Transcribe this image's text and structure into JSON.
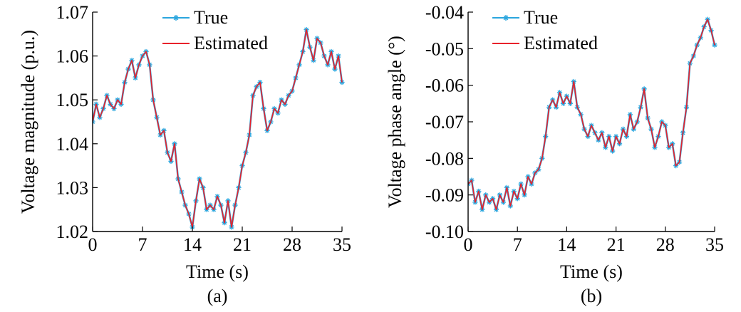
{
  "chart_data": [
    {
      "type": "line",
      "panel_label": "(a)",
      "xlabel": "Time (s)",
      "ylabel": "Voltage magnitude (p.u.)",
      "xlim": [
        0,
        35
      ],
      "ylim": [
        1.02,
        1.07
      ],
      "xticks": [
        0,
        7,
        14,
        21,
        28,
        35
      ],
      "xtick_labels": [
        "0",
        "7",
        "14",
        "21",
        "28",
        "35"
      ],
      "yticks": [
        1.02,
        1.03,
        1.04,
        1.05,
        1.06,
        1.07
      ],
      "ytick_labels": [
        "1.02",
        "1.03",
        "1.04",
        "1.05",
        "1.06",
        "1.07"
      ],
      "legend_position": "top-center",
      "series": [
        {
          "name": "True",
          "color": "#2ba6de",
          "marker": "star",
          "x": [
            0,
            0.5,
            1,
            1.5,
            2,
            2.5,
            3,
            3.5,
            4,
            4.5,
            5,
            5.5,
            6,
            6.5,
            7,
            7.5,
            8,
            8.5,
            9,
            9.5,
            10,
            10.5,
            11,
            11.5,
            12,
            12.5,
            13,
            13.5,
            14,
            14.5,
            15,
            15.5,
            16,
            16.5,
            17,
            17.5,
            18,
            18.5,
            19,
            19.5,
            20,
            20.5,
            21,
            21.5,
            22,
            22.5,
            23,
            23.5,
            24,
            24.5,
            25,
            25.5,
            26,
            26.5,
            27,
            27.5,
            28,
            28.5,
            29,
            29.5,
            30,
            30.5,
            31,
            31.5,
            32,
            32.5,
            33,
            33.5,
            34,
            34.5,
            35
          ],
          "values": [
            1.045,
            1.049,
            1.046,
            1.048,
            1.051,
            1.049,
            1.048,
            1.05,
            1.049,
            1.054,
            1.057,
            1.059,
            1.055,
            1.058,
            1.06,
            1.061,
            1.058,
            1.05,
            1.046,
            1.042,
            1.043,
            1.038,
            1.036,
            1.04,
            1.032,
            1.029,
            1.026,
            1.024,
            1.021,
            1.027,
            1.032,
            1.03,
            1.025,
            1.026,
            1.025,
            1.028,
            1.026,
            1.022,
            1.027,
            1.021,
            1.026,
            1.03,
            1.035,
            1.038,
            1.042,
            1.051,
            1.053,
            1.054,
            1.048,
            1.043,
            1.045,
            1.048,
            1.047,
            1.05,
            1.049,
            1.051,
            1.052,
            1.055,
            1.058,
            1.061,
            1.066,
            1.062,
            1.059,
            1.064,
            1.063,
            1.06,
            1.058,
            1.061,
            1.057,
            1.06,
            1.054
          ]
        },
        {
          "name": "Estimated",
          "color": "#e8222b",
          "marker": "none",
          "x": [
            0,
            0.5,
            1,
            1.5,
            2,
            2.5,
            3,
            3.5,
            4,
            4.5,
            5,
            5.5,
            6,
            6.5,
            7,
            7.5,
            8,
            8.5,
            9,
            9.5,
            10,
            10.5,
            11,
            11.5,
            12,
            12.5,
            13,
            13.5,
            14,
            14.5,
            15,
            15.5,
            16,
            16.5,
            17,
            17.5,
            18,
            18.5,
            19,
            19.5,
            20,
            20.5,
            21,
            21.5,
            22,
            22.5,
            23,
            23.5,
            24,
            24.5,
            25,
            25.5,
            26,
            26.5,
            27,
            27.5,
            28,
            28.5,
            29,
            29.5,
            30,
            30.5,
            31,
            31.5,
            32,
            32.5,
            33,
            33.5,
            34,
            34.5,
            35
          ],
          "values": [
            1.045,
            1.049,
            1.046,
            1.048,
            1.051,
            1.049,
            1.048,
            1.05,
            1.049,
            1.054,
            1.057,
            1.059,
            1.055,
            1.058,
            1.06,
            1.061,
            1.058,
            1.05,
            1.046,
            1.042,
            1.043,
            1.038,
            1.036,
            1.04,
            1.032,
            1.029,
            1.026,
            1.024,
            1.021,
            1.027,
            1.032,
            1.03,
            1.025,
            1.026,
            1.025,
            1.028,
            1.026,
            1.022,
            1.027,
            1.021,
            1.026,
            1.03,
            1.035,
            1.038,
            1.042,
            1.051,
            1.053,
            1.054,
            1.048,
            1.043,
            1.045,
            1.048,
            1.047,
            1.05,
            1.049,
            1.051,
            1.052,
            1.055,
            1.058,
            1.061,
            1.066,
            1.062,
            1.059,
            1.064,
            1.063,
            1.06,
            1.058,
            1.061,
            1.057,
            1.06,
            1.054
          ]
        }
      ]
    },
    {
      "type": "line",
      "panel_label": "(b)",
      "xlabel": "Time (s)",
      "ylabel": "Voltage phase angle (°)",
      "xlim": [
        0,
        35
      ],
      "ylim": [
        -0.1,
        -0.04
      ],
      "xticks": [
        0,
        7,
        14,
        21,
        28,
        35
      ],
      "xtick_labels": [
        "0",
        "7",
        "14",
        "21",
        "28",
        "35"
      ],
      "yticks": [
        -0.1,
        -0.09,
        -0.08,
        -0.07,
        -0.06,
        -0.05,
        -0.04
      ],
      "ytick_labels": [
        "-0.10",
        "-0.09",
        "-0.08",
        "-0.07",
        "-0.06",
        "-0.05",
        "-0.04"
      ],
      "legend_position": "top-center",
      "series": [
        {
          "name": "True",
          "color": "#2ba6de",
          "marker": "star",
          "x": [
            0,
            0.5,
            1,
            1.5,
            2,
            2.5,
            3,
            3.5,
            4,
            4.5,
            5,
            5.5,
            6,
            6.5,
            7,
            7.5,
            8,
            8.5,
            9,
            9.5,
            10,
            10.5,
            11,
            11.5,
            12,
            12.5,
            13,
            13.5,
            14,
            14.5,
            15,
            15.5,
            16,
            16.5,
            17,
            17.5,
            18,
            18.5,
            19,
            19.5,
            20,
            20.5,
            21,
            21.5,
            22,
            22.5,
            23,
            23.5,
            24,
            24.5,
            25,
            25.5,
            26,
            26.5,
            27,
            27.5,
            28,
            28.5,
            29,
            29.5,
            30,
            30.5,
            31,
            31.5,
            32,
            32.5,
            33,
            33.5,
            34,
            34.5,
            35
          ],
          "values": [
            -0.087,
            -0.086,
            -0.092,
            -0.089,
            -0.094,
            -0.09,
            -0.092,
            -0.091,
            -0.094,
            -0.09,
            -0.092,
            -0.088,
            -0.093,
            -0.089,
            -0.091,
            -0.087,
            -0.09,
            -0.085,
            -0.087,
            -0.084,
            -0.083,
            -0.08,
            -0.074,
            -0.066,
            -0.064,
            -0.066,
            -0.062,
            -0.065,
            -0.063,
            -0.065,
            -0.059,
            -0.066,
            -0.068,
            -0.072,
            -0.074,
            -0.071,
            -0.073,
            -0.075,
            -0.073,
            -0.077,
            -0.074,
            -0.078,
            -0.074,
            -0.076,
            -0.072,
            -0.074,
            -0.068,
            -0.072,
            -0.07,
            -0.066,
            -0.061,
            -0.069,
            -0.072,
            -0.077,
            -0.074,
            -0.07,
            -0.071,
            -0.077,
            -0.076,
            -0.082,
            -0.081,
            -0.073,
            -0.066,
            -0.054,
            -0.052,
            -0.049,
            -0.047,
            -0.044,
            -0.042,
            -0.045,
            -0.049
          ]
        },
        {
          "name": "Estimated",
          "color": "#e8222b",
          "marker": "none",
          "x": [
            0,
            0.5,
            1,
            1.5,
            2,
            2.5,
            3,
            3.5,
            4,
            4.5,
            5,
            5.5,
            6,
            6.5,
            7,
            7.5,
            8,
            8.5,
            9,
            9.5,
            10,
            10.5,
            11,
            11.5,
            12,
            12.5,
            13,
            13.5,
            14,
            14.5,
            15,
            15.5,
            16,
            16.5,
            17,
            17.5,
            18,
            18.5,
            19,
            19.5,
            20,
            20.5,
            21,
            21.5,
            22,
            22.5,
            23,
            23.5,
            24,
            24.5,
            25,
            25.5,
            26,
            26.5,
            27,
            27.5,
            28,
            28.5,
            29,
            29.5,
            30,
            30.5,
            31,
            31.5,
            32,
            32.5,
            33,
            33.5,
            34,
            34.5,
            35
          ],
          "values": [
            -0.087,
            -0.086,
            -0.092,
            -0.089,
            -0.094,
            -0.09,
            -0.092,
            -0.091,
            -0.094,
            -0.09,
            -0.092,
            -0.088,
            -0.093,
            -0.089,
            -0.091,
            -0.087,
            -0.09,
            -0.085,
            -0.087,
            -0.084,
            -0.083,
            -0.08,
            -0.074,
            -0.066,
            -0.064,
            -0.066,
            -0.062,
            -0.065,
            -0.063,
            -0.065,
            -0.059,
            -0.066,
            -0.068,
            -0.072,
            -0.074,
            -0.071,
            -0.073,
            -0.075,
            -0.073,
            -0.077,
            -0.074,
            -0.078,
            -0.074,
            -0.076,
            -0.072,
            -0.074,
            -0.068,
            -0.072,
            -0.07,
            -0.066,
            -0.061,
            -0.069,
            -0.072,
            -0.077,
            -0.074,
            -0.07,
            -0.071,
            -0.077,
            -0.076,
            -0.082,
            -0.081,
            -0.073,
            -0.066,
            -0.054,
            -0.052,
            -0.049,
            -0.047,
            -0.044,
            -0.042,
            -0.045,
            -0.049
          ]
        }
      ]
    }
  ]
}
